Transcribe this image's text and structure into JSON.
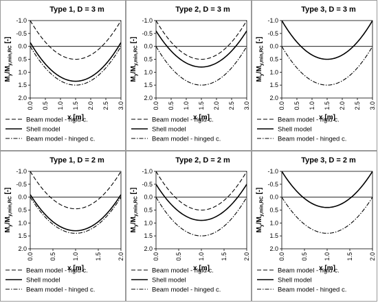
{
  "legend_labels": [
    "Beam model - rigid c.",
    "Shell model",
    "Beam model - hinged c."
  ],
  "chart_data": [
    {
      "type": "line",
      "title": "Type 1, D = 3 m",
      "xlabel": "x [m]",
      "ylabel": "My/My,min,RC [-]",
      "ylabel_main": "M",
      "ylabel_sub1": "y",
      "ylabel_mid": "/M",
      "ylabel_sub2": "y,min,RC",
      "ylabel_tail": " [-]",
      "xlim": [
        0,
        3
      ],
      "ylim": [
        -1.0,
        2.0
      ],
      "y_inverted": true,
      "x_ticks": [
        "0.0",
        "0.5",
        "1.0",
        "1.5",
        "2.0",
        "2.5",
        "3.0"
      ],
      "y_ticks": [
        "-1.0",
        "-0.5",
        "0.0",
        "0.5",
        "1.0",
        "1.5",
        "2.0"
      ],
      "series": [
        {
          "name": "Beam model - rigid c.",
          "style": "dashed",
          "x": [
            0,
            3
          ],
          "end_value": -1.0,
          "mid_value": 0.5
        },
        {
          "name": "Shell model",
          "style": "solid",
          "x": [
            0,
            3
          ],
          "end_value": -0.15,
          "mid_value": 1.35
        },
        {
          "name": "Beam model - hinged c.",
          "style": "dashdot",
          "x": [
            0,
            3
          ],
          "end_value": 0.0,
          "mid_value": 1.5
        }
      ]
    },
    {
      "type": "line",
      "title": "Type 2, D = 3 m",
      "xlabel": "x [m]",
      "ylabel": "My/My,min,RC [-]",
      "ylabel_main": "M",
      "ylabel_sub1": "y",
      "ylabel_mid": "/M",
      "ylabel_sub2": "y,min,RC",
      "ylabel_tail": " [-]",
      "xlim": [
        0,
        3
      ],
      "ylim": [
        -1.0,
        2.0
      ],
      "y_inverted": true,
      "x_ticks": [
        "0.0",
        "0.5",
        "1.0",
        "1.5",
        "2.0",
        "2.5",
        "3.0"
      ],
      "y_ticks": [
        "-1.0",
        "-0.5",
        "0.0",
        "0.5",
        "1.0",
        "1.5",
        "2.0"
      ],
      "series": [
        {
          "name": "Beam model - rigid c.",
          "style": "dashed",
          "x": [
            0,
            3
          ],
          "end_value": -1.0,
          "mid_value": 0.5
        },
        {
          "name": "Shell model",
          "style": "solid",
          "x": [
            0,
            3
          ],
          "end_value": -0.6,
          "mid_value": 0.8
        },
        {
          "name": "Beam model - hinged c.",
          "style": "dashdot",
          "x": [
            0,
            3
          ],
          "end_value": 0.0,
          "mid_value": 1.5
        }
      ]
    },
    {
      "type": "line",
      "title": "Type 3, D = 3 m",
      "xlabel": "x [m]",
      "ylabel": "My/My,min,RC [-]",
      "ylabel_main": "M",
      "ylabel_sub1": "y",
      "ylabel_mid": "/M",
      "ylabel_sub2": "y,min,RC",
      "ylabel_tail": " [-]",
      "xlim": [
        0,
        3
      ],
      "ylim": [
        -1.0,
        2.0
      ],
      "y_inverted": true,
      "x_ticks": [
        "0.0",
        "0.5",
        "1.0",
        "1.5",
        "2.0",
        "2.5",
        "3.0"
      ],
      "y_ticks": [
        "-1.0",
        "-0.5",
        "0.0",
        "0.5",
        "1.0",
        "1.5",
        "2.0"
      ],
      "series": [
        {
          "name": "Beam model - rigid c.",
          "style": "dashed",
          "x": [
            0,
            3
          ],
          "end_value": -1.0,
          "mid_value": 0.5
        },
        {
          "name": "Shell model",
          "style": "solid",
          "x": [
            0,
            3
          ],
          "end_value": -1.0,
          "mid_value": 0.5
        },
        {
          "name": "Beam model - hinged c.",
          "style": "dashdot",
          "x": [
            0,
            3
          ],
          "end_value": 0.0,
          "mid_value": 1.5
        }
      ]
    },
    {
      "type": "line",
      "title": "Type 1, D = 2 m",
      "xlabel": "x [m]",
      "ylabel": "My/My,min,RC [-]",
      "ylabel_main": "M",
      "ylabel_sub1": "y",
      "ylabel_mid": "/M",
      "ylabel_sub2": "y,min,RC",
      "ylabel_tail": " [-]",
      "xlim": [
        0,
        2
      ],
      "ylim": [
        -1.0,
        2.0
      ],
      "y_inverted": true,
      "x_ticks": [
        "0.0",
        "0.5",
        "1.0",
        "1.5",
        "2.0"
      ],
      "y_ticks": [
        "-1.0",
        "-0.5",
        "0.0",
        "0.5",
        "1.0",
        "1.5",
        "2.0"
      ],
      "series": [
        {
          "name": "Beam model - rigid c.",
          "style": "dashed",
          "x": [
            0,
            2
          ],
          "end_value": -1.0,
          "mid_value": 0.45
        },
        {
          "name": "Shell model",
          "style": "solid",
          "x": [
            0,
            2
          ],
          "end_value": -0.1,
          "mid_value": 1.3
        },
        {
          "name": "Beam model - hinged c.",
          "style": "dashdot",
          "x": [
            0,
            2
          ],
          "end_value": 0.0,
          "mid_value": 1.4
        }
      ]
    },
    {
      "type": "line",
      "title": "Type 2, D = 2 m",
      "xlabel": "x [m]",
      "ylabel": "My/My,min,RC [-]",
      "ylabel_main": "M",
      "ylabel_sub1": "y",
      "ylabel_mid": "/M",
      "ylabel_sub2": "y,min,RC",
      "ylabel_tail": " [-]",
      "xlim": [
        0,
        2
      ],
      "ylim": [
        -1.0,
        2.0
      ],
      "y_inverted": true,
      "x_ticks": [
        "0.0",
        "0.5",
        "1.0",
        "1.5",
        "2.0"
      ],
      "y_ticks": [
        "-1.0",
        "-0.5",
        "0.0",
        "0.5",
        "1.0",
        "1.5",
        "2.0"
      ],
      "series": [
        {
          "name": "Beam model - rigid c.",
          "style": "dashed",
          "x": [
            0,
            2
          ],
          "end_value": -1.0,
          "mid_value": 0.5
        },
        {
          "name": "Shell model",
          "style": "solid",
          "x": [
            0,
            2
          ],
          "end_value": -0.5,
          "mid_value": 0.9
        },
        {
          "name": "Beam model - hinged c.",
          "style": "dashdot",
          "x": [
            0,
            2
          ],
          "end_value": 0.0,
          "mid_value": 1.5
        }
      ]
    },
    {
      "type": "line",
      "title": "Type 3, D = 2 m",
      "xlabel": "x [m]",
      "ylabel": "My/My,min,RC [-]",
      "ylabel_main": "M",
      "ylabel_sub1": "y",
      "ylabel_mid": "/M",
      "ylabel_sub2": "y,min,RC",
      "ylabel_tail": " [-]",
      "xlim": [
        0,
        2
      ],
      "ylim": [
        -1.0,
        2.0
      ],
      "y_inverted": true,
      "x_ticks": [
        "0.0",
        "0.5",
        "1.0",
        "1.5",
        "2.0"
      ],
      "y_ticks": [
        "-1.0",
        "-0.5",
        "0.0",
        "0.5",
        "1.0",
        "1.5",
        "2.0"
      ],
      "series": [
        {
          "name": "Beam model - rigid c.",
          "style": "dashed",
          "x": [
            0,
            2
          ],
          "end_value": -1.0,
          "mid_value": 0.4
        },
        {
          "name": "Shell model",
          "style": "solid",
          "x": [
            0,
            2
          ],
          "end_value": -1.0,
          "mid_value": 0.4
        },
        {
          "name": "Beam model - hinged c.",
          "style": "dashdot",
          "x": [
            0,
            2
          ],
          "end_value": 0.0,
          "mid_value": 1.4
        }
      ]
    }
  ]
}
